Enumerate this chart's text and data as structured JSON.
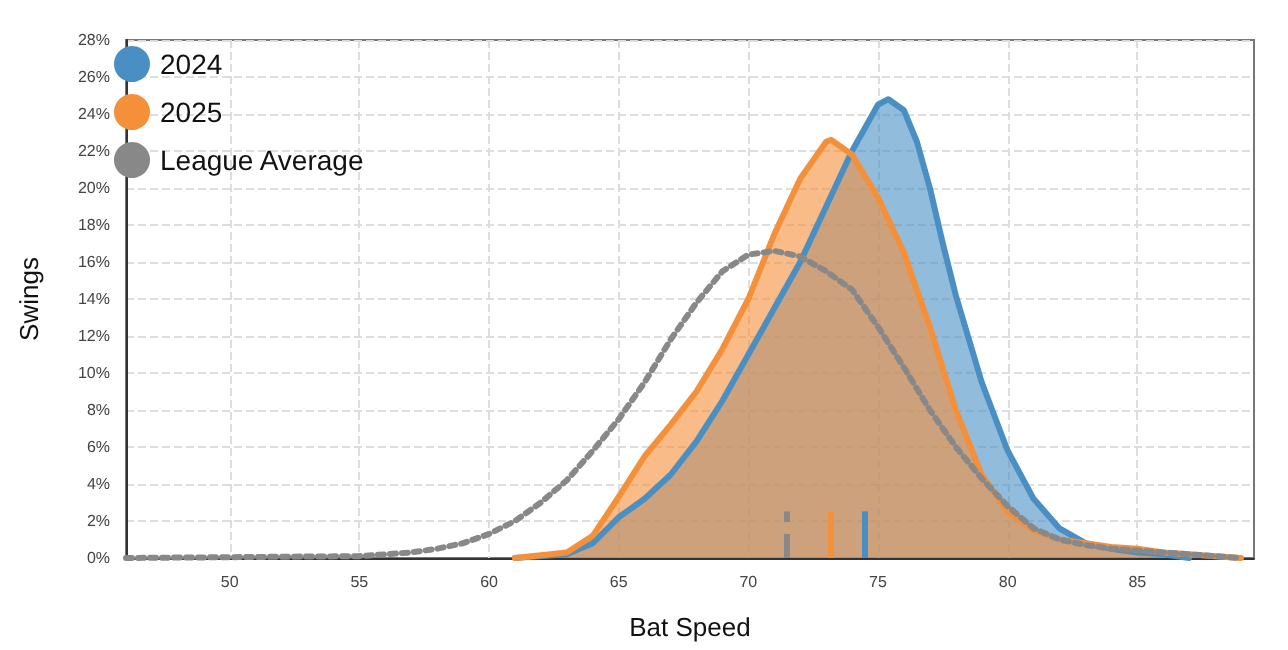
{
  "chart_data": {
    "type": "area",
    "xlabel": "Bat Speed",
    "ylabel": "Swings",
    "xlim": [
      46,
      89.5
    ],
    "xticks": [
      50,
      55,
      60,
      65,
      70,
      75,
      80,
      85
    ],
    "ylim": [
      0,
      28
    ],
    "yticks": [
      {
        "value": 0,
        "label": "0%"
      },
      {
        "value": 2,
        "label": "2%"
      },
      {
        "value": 4,
        "label": "4%"
      },
      {
        "value": 6,
        "label": "6%"
      },
      {
        "value": 8,
        "label": "8%"
      },
      {
        "value": 10,
        "label": "10%"
      },
      {
        "value": 12,
        "label": "12%"
      },
      {
        "value": 14,
        "label": "14%"
      },
      {
        "value": 16,
        "label": "16%"
      },
      {
        "value": 18,
        "label": "18%"
      },
      {
        "value": 20,
        "label": "20%"
      },
      {
        "value": 22,
        "label": "22%"
      },
      {
        "value": 24,
        "label": "24%"
      },
      {
        "value": 26,
        "label": "26%"
      },
      {
        "value": 28,
        "label": "28%"
      }
    ],
    "grid": true,
    "legend": "top left",
    "marker": "none",
    "series": [
      {
        "name": "2024",
        "color": "#4a8fc4",
        "x": [
          61,
          63,
          64,
          65,
          66,
          67,
          68,
          69,
          70,
          71,
          72,
          73,
          74,
          75,
          75.4,
          76,
          76.5,
          77,
          77.5,
          78,
          79,
          80,
          81,
          82,
          83,
          84,
          85,
          86,
          87
        ],
        "values": [
          0,
          0.2,
          0.8,
          2.2,
          3.2,
          4.5,
          6.3,
          8.5,
          11,
          13.5,
          16,
          19,
          22,
          24.5,
          24.8,
          24.2,
          22.5,
          20,
          17,
          14.2,
          9.5,
          5.8,
          3.2,
          1.6,
          0.8,
          0.5,
          0.3,
          0.2,
          0
        ]
      },
      {
        "name": "2025",
        "color": "#f5903a",
        "x": [
          61,
          63,
          64,
          65,
          66,
          67,
          68,
          69,
          70,
          71,
          72,
          73,
          73.2,
          74,
          75,
          76,
          77,
          78,
          79,
          80,
          81,
          82,
          83,
          84,
          85,
          86,
          87,
          88,
          89
        ],
        "values": [
          0,
          0.3,
          1.2,
          3.3,
          5.5,
          7.2,
          9,
          11.3,
          14,
          17.5,
          20.5,
          22.5,
          22.6,
          21.8,
          19.5,
          16.5,
          12.5,
          8,
          4.5,
          2.5,
          1.5,
          1,
          0.8,
          0.6,
          0.5,
          0.3,
          0.2,
          0.1,
          0
        ]
      },
      {
        "name": "League Average",
        "type": "line",
        "color": "#888888",
        "line_style": "dotted",
        "x": [
          46,
          55,
          57,
          58,
          59,
          60,
          61,
          62,
          63,
          64,
          65,
          66,
          67,
          68,
          69,
          70,
          71,
          72,
          73,
          74,
          75,
          76,
          77,
          78,
          79,
          80,
          81,
          82,
          83,
          84,
          85,
          86,
          87,
          88,
          89
        ],
        "values": [
          0,
          0.1,
          0.3,
          0.5,
          0.8,
          1.3,
          2,
          3,
          4.2,
          5.8,
          7.5,
          9.5,
          11.8,
          13.8,
          15.5,
          16.4,
          16.6,
          16.3,
          15.5,
          14.5,
          12.5,
          10.3,
          8,
          6,
          4.3,
          2.8,
          1.6,
          1,
          0.7,
          0.5,
          0.4,
          0.3,
          0.2,
          0.1,
          0
        ]
      }
    ],
    "ref_lines": [
      {
        "axis": "x",
        "value": 71.5,
        "color": "#888888",
        "line_style": "dashed"
      },
      {
        "axis": "x",
        "value": 73.2,
        "color": "#f5903a"
      },
      {
        "axis": "x",
        "value": 74.5,
        "color": "#4a8fc4"
      }
    ]
  }
}
